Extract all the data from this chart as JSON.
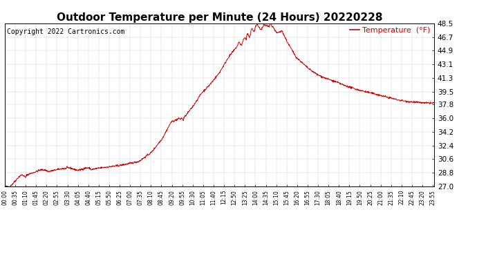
{
  "title": "Outdoor Temperature per Minute (24 Hours) 20220228",
  "copyright_text": "Copyright 2022 Cartronics.com",
  "legend_label": "Temperature  (°F)",
  "line_color": "#cc0000",
  "background_color": "#ffffff",
  "grid_color": "#999999",
  "title_fontsize": 11,
  "ylabel_fontsize": 7.5,
  "xlabel_fontsize": 5.5,
  "copyright_fontsize": 7,
  "legend_fontsize": 8,
  "yticks": [
    27.0,
    28.8,
    30.6,
    32.4,
    34.2,
    36.0,
    37.8,
    39.5,
    41.3,
    43.1,
    44.9,
    46.7,
    48.5
  ],
  "ylim": [
    27.0,
    48.5
  ],
  "total_minutes": 1440,
  "xtick_interval": 35,
  "xtick_labels": [
    "00:00",
    "00:35",
    "01:10",
    "01:45",
    "02:20",
    "02:55",
    "03:30",
    "04:05",
    "04:40",
    "05:15",
    "05:50",
    "06:25",
    "07:00",
    "07:35",
    "08:10",
    "08:45",
    "09:20",
    "09:55",
    "10:30",
    "11:05",
    "11:40",
    "12:15",
    "12:50",
    "13:25",
    "14:00",
    "14:35",
    "15:10",
    "15:45",
    "16:20",
    "16:55",
    "17:30",
    "18:05",
    "18:40",
    "19:15",
    "19:50",
    "20:25",
    "21:00",
    "21:35",
    "22:10",
    "22:45",
    "23:20",
    "23:55"
  ]
}
